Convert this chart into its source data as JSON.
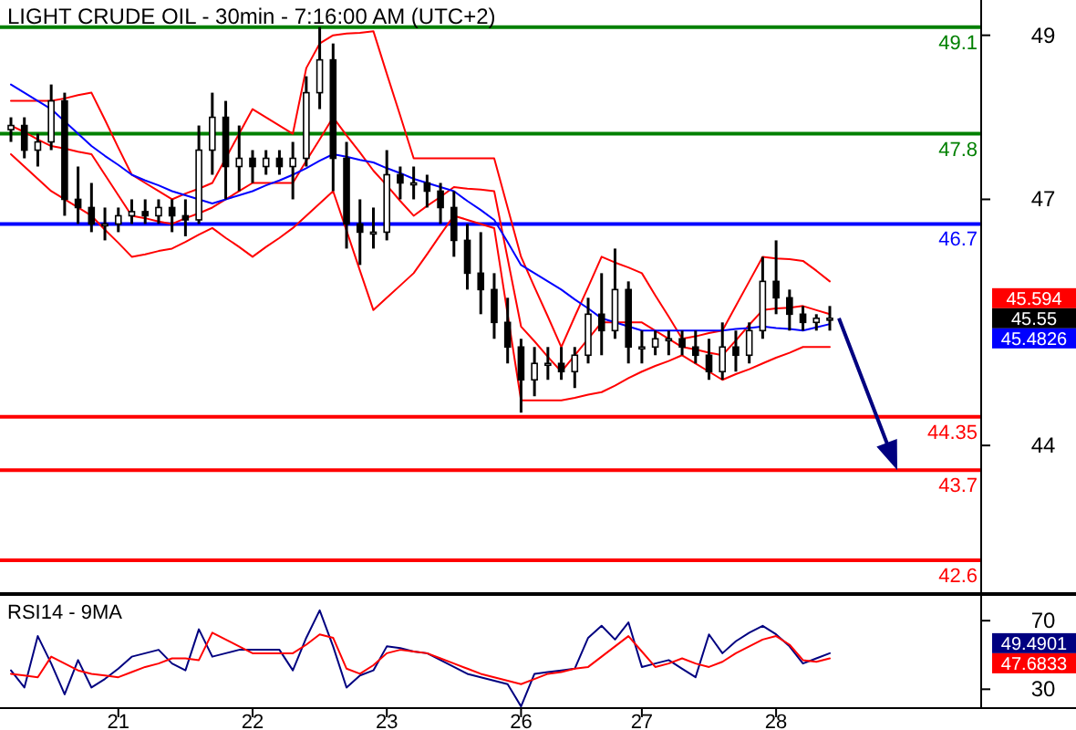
{
  "chart_data": [
    {
      "type": "candlestick",
      "title": "LIGHT CRUDE OIL - 30min - 7:16:00 AM (UTC+2)",
      "color": "#000000",
      "categories": [
        null,
        null,
        null,
        null,
        null,
        null,
        null,
        null,
        null,
        null,
        null,
        null,
        null,
        null,
        null,
        null,
        null,
        null,
        null,
        null,
        null,
        null,
        null,
        null,
        null,
        null,
        null,
        null,
        null,
        null,
        null,
        null,
        null,
        null,
        null,
        null,
        null,
        null,
        null,
        null,
        null,
        null,
        null,
        null,
        null,
        null,
        null,
        null,
        null,
        null,
        null,
        null,
        null,
        null,
        null,
        null,
        null,
        null,
        null,
        null,
        null,
        null
      ],
      "ohlc": [
        [
          47.85,
          48.0,
          47.7,
          47.9
        ],
        [
          47.9,
          48.0,
          47.5,
          47.6
        ],
        [
          47.6,
          47.8,
          47.4,
          47.7
        ],
        [
          47.7,
          48.4,
          47.6,
          48.2
        ],
        [
          48.2,
          48.3,
          46.8,
          47.0
        ],
        [
          47.0,
          47.4,
          46.7,
          46.9
        ],
        [
          46.9,
          47.2,
          46.6,
          46.7
        ],
        [
          46.7,
          46.9,
          46.5,
          46.7
        ],
        [
          46.7,
          46.9,
          46.6,
          46.8
        ],
        [
          46.8,
          47.0,
          46.7,
          46.85
        ],
        [
          46.85,
          47.0,
          46.7,
          46.8
        ],
        [
          46.8,
          47.0,
          46.7,
          46.9
        ],
        [
          46.9,
          47.0,
          46.6,
          46.8
        ],
        [
          46.8,
          47.0,
          46.55,
          46.75
        ],
        [
          46.75,
          47.9,
          46.7,
          47.6
        ],
        [
          47.6,
          48.3,
          47.3,
          48.0
        ],
        [
          48.0,
          48.2,
          47.0,
          47.4
        ],
        [
          47.4,
          47.9,
          47.1,
          47.5
        ],
        [
          47.5,
          47.6,
          47.2,
          47.4
        ],
        [
          47.4,
          47.6,
          47.3,
          47.5
        ],
        [
          47.5,
          47.6,
          47.3,
          47.4
        ],
        [
          47.4,
          47.7,
          47.0,
          47.5
        ],
        [
          47.5,
          48.5,
          47.4,
          48.3
        ],
        [
          48.3,
          49.1,
          48.1,
          48.7
        ],
        [
          48.7,
          48.9,
          47.1,
          47.5
        ],
        [
          47.5,
          47.7,
          46.4,
          46.7
        ],
        [
          46.7,
          47.0,
          46.2,
          46.6
        ],
        [
          46.6,
          46.9,
          46.4,
          46.6
        ],
        [
          46.6,
          47.6,
          46.5,
          47.3
        ],
        [
          47.3,
          47.4,
          47.0,
          47.2
        ],
        [
          47.2,
          47.4,
          47.0,
          47.2
        ],
        [
          47.2,
          47.3,
          46.9,
          47.1
        ],
        [
          47.1,
          47.2,
          46.7,
          46.9
        ],
        [
          46.9,
          47.1,
          46.3,
          46.5
        ],
        [
          46.5,
          46.7,
          45.9,
          46.1
        ],
        [
          46.1,
          46.6,
          45.6,
          45.9
        ],
        [
          45.9,
          46.1,
          45.3,
          45.5
        ],
        [
          45.5,
          45.8,
          45.0,
          45.2
        ],
        [
          45.2,
          45.3,
          44.4,
          44.8
        ],
        [
          44.8,
          45.2,
          44.6,
          45.0
        ],
        [
          45.0,
          45.2,
          44.8,
          45.0
        ],
        [
          45.0,
          45.2,
          44.8,
          44.9
        ],
        [
          44.9,
          45.2,
          44.7,
          45.1
        ],
        [
          45.1,
          45.8,
          45.0,
          45.6
        ],
        [
          45.6,
          46.1,
          45.1,
          45.4
        ],
        [
          45.4,
          46.4,
          45.3,
          45.9
        ],
        [
          45.9,
          46.0,
          45.0,
          45.2
        ],
        [
          45.2,
          45.4,
          45.0,
          45.2
        ],
        [
          45.2,
          45.4,
          45.1,
          45.3
        ],
        [
          45.3,
          45.4,
          45.1,
          45.3
        ],
        [
          45.3,
          45.4,
          45.1,
          45.2
        ],
        [
          45.2,
          45.4,
          45.0,
          45.1
        ],
        [
          45.1,
          45.3,
          44.8,
          44.9
        ],
        [
          44.9,
          45.5,
          44.8,
          45.2
        ],
        [
          45.2,
          45.4,
          44.9,
          45.1
        ],
        [
          45.1,
          45.5,
          45.0,
          45.4
        ],
        [
          45.4,
          46.3,
          45.3,
          46.0
        ],
        [
          46.0,
          46.5,
          45.6,
          45.8
        ],
        [
          45.8,
          45.9,
          45.4,
          45.6
        ],
        [
          45.6,
          45.7,
          45.4,
          45.5
        ],
        [
          45.5,
          45.6,
          45.4,
          45.55
        ],
        [
          45.55,
          45.7,
          45.4,
          45.55
        ]
      ],
      "series": [
        {
          "type": "line",
          "color": "#ff0000",
          "values": [
            48.2,
            48.2,
            48.2,
            48.2,
            48.23,
            48.27,
            48.3,
            47.97,
            47.63,
            47.3,
            47.2,
            47.1,
            47.0,
            47.07,
            47.13,
            47.2,
            47.5,
            47.8,
            48.1,
            48.0,
            47.9,
            47.8,
            48.6,
            48.9,
            49.0,
            49.02,
            49.03,
            49.05,
            48.53,
            48.02,
            47.5,
            47.5,
            47.5,
            47.5,
            47.5,
            47.5,
            47.5,
            46.9,
            46.3,
            45.93,
            45.57,
            45.2,
            45.57,
            45.93,
            46.3,
            46.23,
            46.17,
            46.1,
            45.83,
            45.57,
            45.3,
            45.33,
            45.37,
            45.4,
            45.7,
            46.0,
            46.3,
            46.28,
            46.27,
            46.25,
            46.13,
            46.0
          ]
        },
        {
          "type": "line",
          "color": "#ff0000",
          "values": [
            47.9,
            47.82,
            47.73,
            47.65,
            47.62,
            47.58,
            47.55,
            47.3,
            47.05,
            46.8,
            46.77,
            46.73,
            46.7,
            46.77,
            46.83,
            46.9,
            47.0,
            47.1,
            47.2,
            47.2,
            47.2,
            47.2,
            47.47,
            47.73,
            48.0,
            47.78,
            47.57,
            47.35,
            47.17,
            46.98,
            46.8,
            46.92,
            47.03,
            47.15,
            47.13,
            47.12,
            47.1,
            46.28,
            45.45,
            45.27,
            45.08,
            44.9,
            45.1,
            45.3,
            45.5,
            45.5,
            45.5,
            45.5,
            45.4,
            45.3,
            45.2,
            45.17,
            45.13,
            45.1,
            45.28,
            45.47,
            45.65,
            45.67,
            45.68,
            45.7,
            45.65,
            45.6
          ]
        },
        {
          "type": "line",
          "color": "#ff0000",
          "values": [
            47.55,
            47.4,
            47.25,
            47.1,
            47.0,
            46.9,
            46.8,
            46.63,
            46.47,
            46.3,
            46.33,
            46.37,
            46.4,
            46.48,
            46.57,
            46.65,
            46.53,
            46.42,
            46.3,
            46.42,
            46.53,
            46.65,
            46.8,
            46.95,
            47.1,
            46.62,
            46.13,
            45.65,
            45.8,
            45.95,
            46.1,
            46.33,
            46.57,
            46.8,
            46.75,
            46.7,
            46.65,
            45.6,
            44.55,
            44.55,
            44.55,
            44.55,
            44.58,
            44.62,
            44.65,
            44.73,
            44.82,
            44.9,
            44.97,
            45.03,
            45.1,
            45.0,
            44.9,
            44.8,
            44.87,
            44.93,
            45.0,
            45.07,
            45.13,
            45.2,
            45.2,
            45.2
          ]
        },
        {
          "type": "line",
          "color": "#0000ff",
          "values": [
            48.4,
            48.3,
            48.2,
            48.1,
            47.95,
            47.8,
            47.65,
            47.53,
            47.42,
            47.3,
            47.23,
            47.17,
            47.1,
            47.05,
            47.0,
            46.95,
            47.0,
            47.05,
            47.1,
            47.17,
            47.23,
            47.3,
            47.38,
            47.47,
            47.55,
            47.52,
            47.48,
            47.45,
            47.38,
            47.32,
            47.25,
            47.2,
            47.15,
            47.1,
            46.98,
            46.87,
            46.75,
            46.48,
            46.2,
            46.1,
            46.0,
            45.9,
            45.78,
            45.67,
            45.55,
            45.5,
            45.45,
            45.4,
            45.4,
            45.4,
            45.4,
            45.4,
            45.4,
            45.4,
            45.42,
            45.43,
            45.45,
            45.43,
            45.42,
            45.4,
            45.44,
            45.48
          ]
        }
      ],
      "ref_lines": [
        {
          "axis": "y",
          "value": 49.1,
          "label": "49.1",
          "color": "#008000"
        },
        {
          "axis": "y",
          "value": 47.8,
          "label": "47.8",
          "color": "#008000"
        },
        {
          "axis": "y",
          "value": 46.7,
          "label": "46.7",
          "color": "#0000ff"
        },
        {
          "axis": "y",
          "value": 44.35,
          "label": "44.35",
          "color": "#ff0000"
        },
        {
          "axis": "y",
          "value": 43.7,
          "label": "43.7",
          "color": "#ff0000"
        },
        {
          "axis": "y",
          "value": 42.6,
          "label": "42.6",
          "color": "#ff0000"
        }
      ],
      "annotations": [
        "45.594",
        "45.55",
        "45.4826"
      ],
      "ylim": [
        42.2,
        49.43
      ],
      "yticks": [
        49,
        47,
        44
      ],
      "tick_labels": "y"
    },
    {
      "type": "line",
      "title": "RSI14 - 9MA",
      "categories": [
        null,
        null,
        null,
        null,
        null,
        null,
        null,
        null,
        "21",
        null,
        null,
        null,
        null,
        null,
        null,
        null,
        null,
        null,
        "22",
        null,
        null,
        null,
        null,
        null,
        null,
        null,
        null,
        null,
        "23",
        null,
        null,
        null,
        null,
        null,
        null,
        null,
        null,
        null,
        "26",
        null,
        null,
        null,
        null,
        null,
        null,
        null,
        null,
        "27",
        null,
        null,
        null,
        null,
        null,
        null,
        null,
        null,
        null,
        "28",
        null,
        null,
        null,
        null
      ],
      "series": [
        {
          "color": "#000080",
          "values": [
            41,
            31,
            61,
            45,
            27,
            47,
            31,
            36,
            42,
            49,
            51,
            53,
            45,
            41,
            65,
            49,
            51,
            53,
            53,
            53,
            53,
            41,
            60,
            76,
            55,
            31,
            38,
            41,
            55,
            54,
            52,
            51,
            47,
            43,
            39,
            37,
            35,
            33,
            20,
            39,
            40,
            41,
            42,
            60,
            67,
            59,
            69,
            43,
            45,
            47,
            42,
            37,
            62,
            51,
            58,
            63,
            67,
            62,
            55,
            45,
            48,
            51
          ]
        },
        {
          "color": "#ff0000",
          "values": [
            39,
            38,
            37,
            49,
            45,
            41,
            39,
            38,
            37,
            40,
            43,
            45,
            48,
            48,
            47,
            63,
            59,
            55,
            51,
            51,
            51,
            51,
            56,
            62,
            60,
            42,
            39,
            44,
            51,
            53,
            52,
            51,
            48,
            45,
            42,
            39,
            37,
            35,
            33,
            36,
            39,
            40,
            42,
            43,
            49,
            55,
            61,
            52,
            43,
            45,
            48,
            45,
            43,
            46,
            51,
            55,
            59,
            61,
            56,
            47,
            46,
            48
          ]
        }
      ],
      "annotations": [
        "49.4901",
        "47.6833"
      ],
      "ylim": [
        19,
        85
      ],
      "yticks": [
        70,
        30
      ]
    }
  ]
}
